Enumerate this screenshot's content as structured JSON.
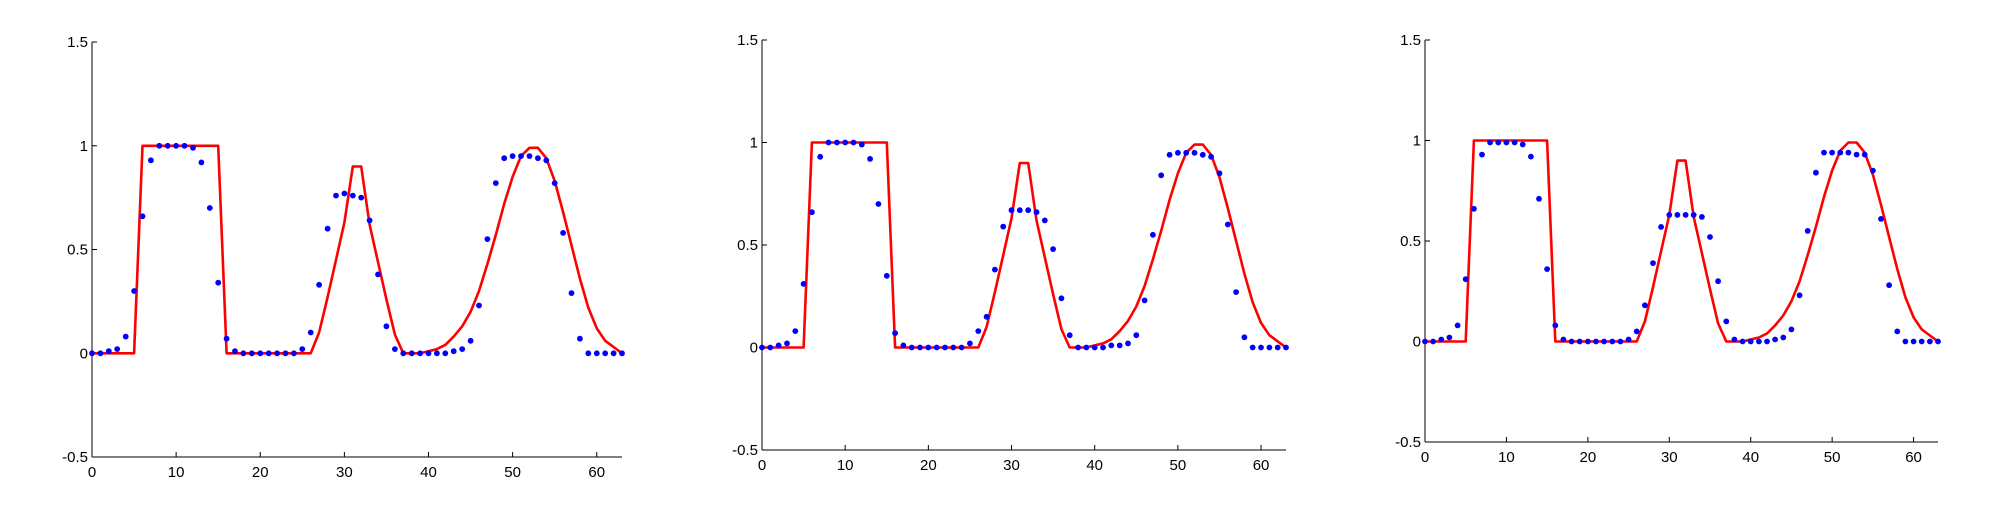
{
  "chart_data": [
    {
      "type": "line",
      "xlim": [
        0,
        63
      ],
      "ylim": [
        -0.5,
        1.5
      ],
      "xticks": [
        "0",
        "10",
        "20",
        "30",
        "40",
        "50",
        "60"
      ],
      "yticks": [
        "-0.5",
        "0",
        "0.5",
        "1",
        "1.5"
      ],
      "grid": false,
      "series": [
        {
          "color": "#ff0000",
          "style": "line",
          "x": [
            0,
            5,
            6,
            15,
            16,
            26,
            27,
            28,
            29,
            30,
            31,
            32,
            33,
            34,
            35,
            36,
            37,
            38,
            39,
            40,
            41,
            42,
            43,
            44,
            45,
            46,
            47,
            48,
            49,
            50,
            51,
            52,
            53,
            54,
            55,
            56,
            57,
            58,
            59,
            60,
            61,
            62,
            63
          ],
          "y": [
            0,
            0,
            1,
            1,
            0,
            0,
            0.1,
            0.27,
            0.45,
            0.63,
            0.9,
            0.9,
            0.62,
            0.44,
            0.26,
            0.09,
            0,
            0,
            0,
            0.01,
            0.02,
            0.04,
            0.08,
            0.13,
            0.2,
            0.3,
            0.43,
            0.57,
            0.72,
            0.85,
            0.95,
            0.99,
            0.99,
            0.94,
            0.83,
            0.68,
            0.52,
            0.36,
            0.22,
            0.12,
            0.06,
            0.03,
            0
          ]
        },
        {
          "color": "#0000ff",
          "style": "dots",
          "x": [
            0,
            1,
            2,
            3,
            4,
            5,
            6,
            7,
            8,
            9,
            10,
            11,
            12,
            13,
            14,
            15,
            16,
            17,
            18,
            19,
            20,
            21,
            22,
            23,
            24,
            25,
            26,
            27,
            28,
            29,
            30,
            31,
            32,
            33,
            34,
            35,
            36,
            37,
            38,
            39,
            40,
            41,
            42,
            43,
            44,
            45,
            46,
            47,
            48,
            49,
            50,
            51,
            52,
            53,
            54,
            55,
            56,
            57,
            58,
            59,
            60,
            61,
            62,
            63
          ],
          "y": [
            0,
            0,
            0.01,
            0.02,
            0.08,
            0.3,
            0.66,
            0.93,
            1,
            1,
            1,
            1,
            0.99,
            0.92,
            0.7,
            0.34,
            0.07,
            0.01,
            0,
            0,
            0,
            0,
            0,
            0,
            0,
            0.02,
            0.1,
            0.33,
            0.6,
            0.76,
            0.77,
            0.76,
            0.75,
            0.64,
            0.38,
            0.13,
            0.02,
            0,
            0,
            0,
            0,
            0,
            0,
            0.01,
            0.02,
            0.06,
            0.23,
            0.55,
            0.82,
            0.94,
            0.95,
            0.95,
            0.95,
            0.94,
            0.93,
            0.82,
            0.58,
            0.29,
            0.07,
            0,
            0,
            0,
            0,
            0
          ]
        }
      ]
    },
    {
      "type": "line",
      "xlim": [
        0,
        63
      ],
      "ylim": [
        -0.5,
        1.5
      ],
      "xticks": [
        "0",
        "10",
        "20",
        "30",
        "40",
        "50",
        "60"
      ],
      "yticks": [
        "-0.5",
        "0",
        "0.5",
        "1",
        "1.5"
      ],
      "grid": false,
      "series": [
        {
          "color": "#ff0000",
          "style": "line",
          "x": [
            0,
            5,
            6,
            15,
            16,
            26,
            27,
            28,
            29,
            30,
            31,
            32,
            33,
            34,
            35,
            36,
            37,
            38,
            39,
            40,
            41,
            42,
            43,
            44,
            45,
            46,
            47,
            48,
            49,
            50,
            51,
            52,
            53,
            54,
            55,
            56,
            57,
            58,
            59,
            60,
            61,
            62,
            63
          ],
          "y": [
            0,
            0,
            1,
            1,
            0,
            0,
            0.1,
            0.27,
            0.45,
            0.63,
            0.9,
            0.9,
            0.62,
            0.44,
            0.26,
            0.09,
            0,
            0,
            0,
            0.01,
            0.02,
            0.04,
            0.08,
            0.13,
            0.2,
            0.3,
            0.43,
            0.57,
            0.72,
            0.85,
            0.95,
            0.99,
            0.99,
            0.94,
            0.83,
            0.68,
            0.52,
            0.36,
            0.22,
            0.12,
            0.06,
            0.03,
            0
          ]
        },
        {
          "color": "#0000ff",
          "style": "dots",
          "x": [
            0,
            1,
            2,
            3,
            4,
            5,
            6,
            7,
            8,
            9,
            10,
            11,
            12,
            13,
            14,
            15,
            16,
            17,
            18,
            19,
            20,
            21,
            22,
            23,
            24,
            25,
            26,
            27,
            28,
            29,
            30,
            31,
            32,
            33,
            34,
            35,
            36,
            37,
            38,
            39,
            40,
            41,
            42,
            43,
            44,
            45,
            46,
            47,
            48,
            49,
            50,
            51,
            52,
            53,
            54,
            55,
            56,
            57,
            58,
            59,
            60,
            61,
            62,
            63
          ],
          "y": [
            0,
            0,
            0.01,
            0.02,
            0.08,
            0.31,
            0.66,
            0.93,
            1,
            1,
            1,
            1,
            0.99,
            0.92,
            0.7,
            0.35,
            0.07,
            0.01,
            0,
            0,
            0,
            0,
            0,
            0,
            0,
            0.02,
            0.08,
            0.15,
            0.38,
            0.59,
            0.67,
            0.67,
            0.67,
            0.66,
            0.62,
            0.48,
            0.24,
            0.06,
            0,
            0,
            0,
            0,
            0.01,
            0.01,
            0.02,
            0.06,
            0.23,
            0.55,
            0.84,
            0.94,
            0.95,
            0.95,
            0.95,
            0.94,
            0.93,
            0.85,
            0.6,
            0.27,
            0.05,
            0,
            0,
            0,
            0,
            0
          ]
        }
      ]
    },
    {
      "type": "line",
      "xlim": [
        0,
        63
      ],
      "ylim": [
        -0.5,
        1.5
      ],
      "xticks": [
        "0",
        "10",
        "20",
        "30",
        "40",
        "50",
        "60"
      ],
      "yticks": [
        "-0.5",
        "0",
        "0.5",
        "1",
        "1.5"
      ],
      "grid": false,
      "series": [
        {
          "color": "#ff0000",
          "style": "line",
          "x": [
            0,
            5,
            6,
            15,
            16,
            26,
            27,
            28,
            29,
            30,
            31,
            32,
            33,
            34,
            35,
            36,
            37,
            38,
            39,
            40,
            41,
            42,
            43,
            44,
            45,
            46,
            47,
            48,
            49,
            50,
            51,
            52,
            53,
            54,
            55,
            56,
            57,
            58,
            59,
            60,
            61,
            62,
            63
          ],
          "y": [
            0,
            0,
            1,
            1,
            0,
            0,
            0.1,
            0.27,
            0.45,
            0.63,
            0.9,
            0.9,
            0.62,
            0.44,
            0.26,
            0.09,
            0,
            0,
            0,
            0.01,
            0.02,
            0.04,
            0.08,
            0.13,
            0.2,
            0.3,
            0.43,
            0.57,
            0.72,
            0.85,
            0.95,
            0.99,
            0.99,
            0.94,
            0.83,
            0.68,
            0.52,
            0.36,
            0.22,
            0.12,
            0.06,
            0.03,
            0
          ]
        },
        {
          "color": "#0000ff",
          "style": "dots",
          "x": [
            0,
            1,
            2,
            3,
            4,
            5,
            6,
            7,
            8,
            9,
            10,
            11,
            12,
            13,
            14,
            15,
            16,
            17,
            18,
            19,
            20,
            21,
            22,
            23,
            24,
            25,
            26,
            27,
            28,
            29,
            30,
            31,
            32,
            33,
            34,
            35,
            36,
            37,
            38,
            39,
            40,
            41,
            42,
            43,
            44,
            45,
            46,
            47,
            48,
            49,
            50,
            51,
            52,
            53,
            54,
            55,
            56,
            57,
            58,
            59,
            60,
            61,
            62,
            63
          ],
          "y": [
            0,
            0,
            0.01,
            0.02,
            0.08,
            0.31,
            0.66,
            0.93,
            0.99,
            0.99,
            0.99,
            0.99,
            0.98,
            0.92,
            0.71,
            0.36,
            0.08,
            0.01,
            0,
            0,
            0,
            0,
            0,
            0,
            0,
            0.01,
            0.05,
            0.18,
            0.39,
            0.57,
            0.63,
            0.63,
            0.63,
            0.63,
            0.62,
            0.52,
            0.3,
            0.1,
            0.01,
            0,
            0,
            0,
            0,
            0.01,
            0.02,
            0.06,
            0.23,
            0.55,
            0.84,
            0.94,
            0.94,
            0.94,
            0.94,
            0.93,
            0.93,
            0.85,
            0.61,
            0.28,
            0.05,
            0,
            0,
            0,
            0,
            0
          ]
        }
      ]
    }
  ]
}
